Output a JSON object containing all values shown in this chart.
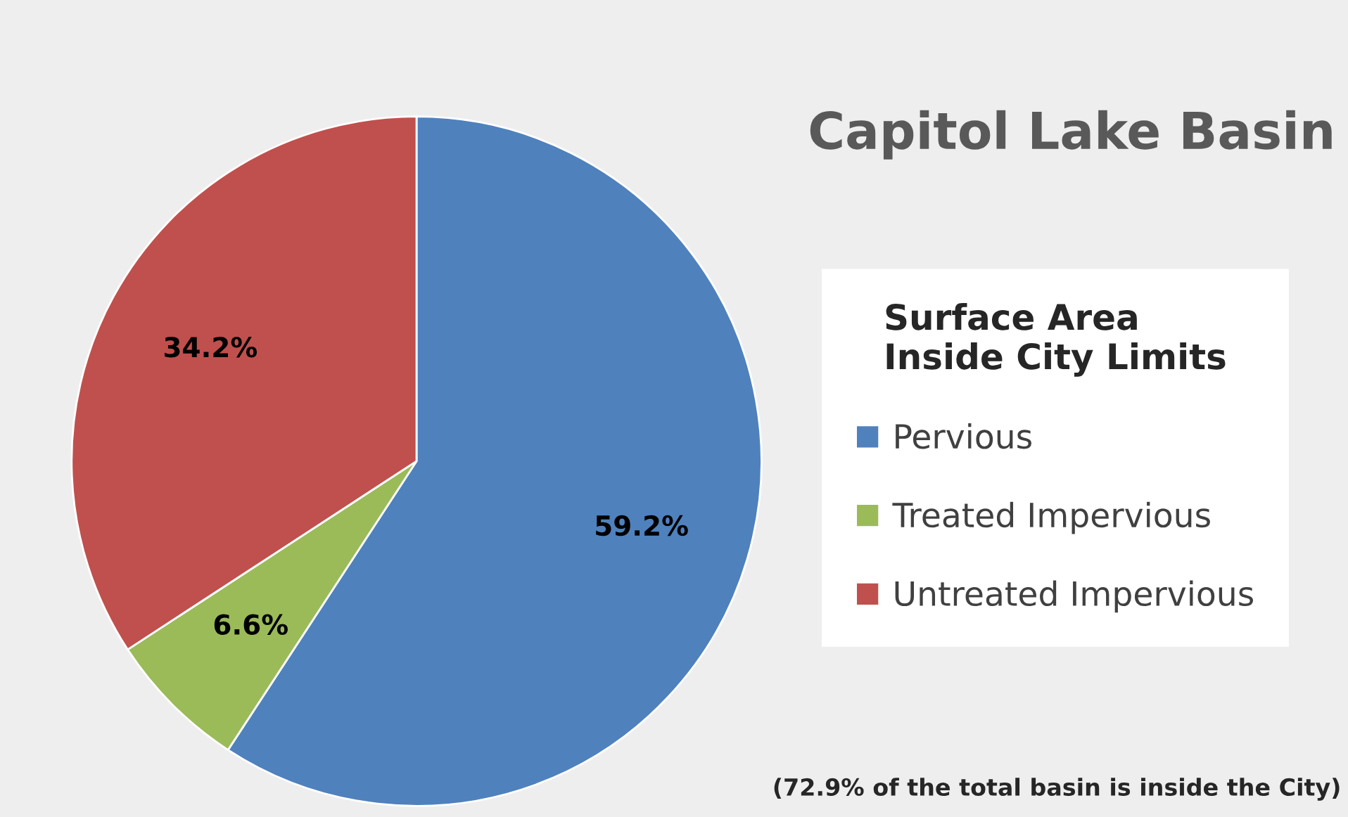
{
  "chart_data": {
    "type": "pie",
    "title": "Capitol Lake Basin",
    "legend_title": "Surface Area\nInside City Limits",
    "categories": [
      "Pervious",
      "Treated Impervious",
      "Untreated Impervious"
    ],
    "values": [
      59.2,
      6.6,
      34.2
    ],
    "value_labels": [
      "59.2%",
      "6.6%",
      "34.2%"
    ],
    "colors": [
      "#4f81bd",
      "#9bbb59",
      "#c0504d"
    ],
    "legend": "right",
    "annotations": [
      "(72.9% of the total basin is inside the City)"
    ]
  }
}
